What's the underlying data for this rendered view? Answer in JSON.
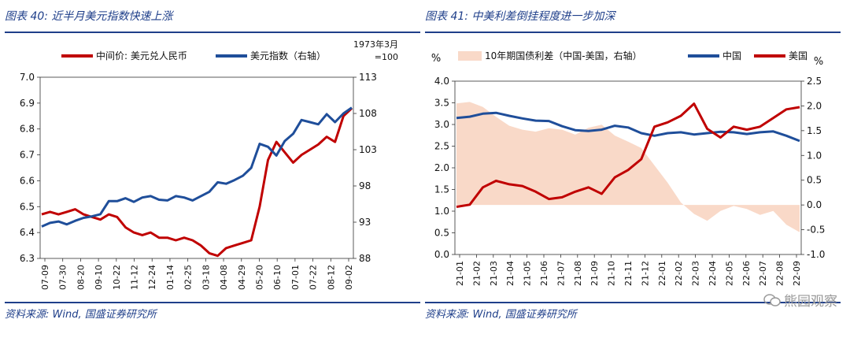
{
  "watermark": "熊园观察",
  "charts": [
    {
      "caption": "图表 40:  近半月美元指数快速上涨",
      "source": "资料来源:  Wind, 国盛证券研究所",
      "chart_data": {
        "type": "line",
        "legend": [
          "中间价: 美元兑人民币",
          "美元指数（右轴）"
        ],
        "right_axis_note": [
          "1973年3月",
          "=100"
        ],
        "x_ticks": [
          "07-09",
          "07-30",
          "08-20",
          "09-10",
          "10-22",
          "11-12",
          "12-24",
          "01-14",
          "02-25",
          "03-18",
          "04-08",
          "04-29",
          "05-20",
          "06-10",
          "07-01",
          "07-22",
          "08-12",
          "09-02"
        ],
        "ylim_left": [
          6.3,
          7.0
        ],
        "yticks_left": [
          "7.0",
          "6.9",
          "6.8",
          "6.7",
          "6.6",
          "6.5",
          "6.4",
          "6.3"
        ],
        "ylim_right": [
          88,
          113
        ],
        "yticks_right": [
          "113",
          "108",
          "103",
          "98",
          "93",
          "88"
        ],
        "series": [
          {
            "name": "中间价: 美元兑人民币",
            "axis": "left",
            "color": "#c00000",
            "values": [
              6.47,
              6.48,
              6.47,
              6.48,
              6.49,
              6.47,
              6.46,
              6.45,
              6.47,
              6.46,
              6.42,
              6.4,
              6.39,
              6.4,
              6.38,
              6.38,
              6.37,
              6.38,
              6.37,
              6.35,
              6.32,
              6.31,
              6.34,
              6.35,
              6.36,
              6.37,
              6.5,
              6.68,
              6.75,
              6.71,
              6.67,
              6.7,
              6.72,
              6.74,
              6.77,
              6.75,
              6.85,
              6.88
            ]
          },
          {
            "name": "美元指数（右轴）",
            "axis": "right",
            "color": "#1f4e9a",
            "values": [
              92.4,
              92.9,
              93.1,
              92.7,
              93.2,
              93.6,
              93.8,
              94.1,
              95.9,
              95.9,
              96.3,
              95.8,
              96.4,
              96.6,
              96.1,
              96.0,
              96.6,
              96.4,
              96.0,
              96.6,
              97.2,
              98.5,
              98.3,
              98.8,
              99.4,
              100.5,
              103.8,
              103.4,
              102.2,
              104.2,
              105.2,
              107.1,
              106.8,
              106.5,
              107.9,
              106.8,
              108.0,
              108.8
            ]
          }
        ]
      }
    },
    {
      "caption": "图表 41:  中美利差倒挂程度进一步加深",
      "source": "资料来源:  Wind, 国盛证券研究所",
      "chart_data": {
        "type": "line",
        "legend": [
          "10年期国债利差（中国-美国，右轴）",
          "中国",
          "美国"
        ],
        "left_unit": "%",
        "right_unit": "%",
        "x_ticks": [
          "21-01",
          "21-02",
          "21-03",
          "21-04",
          "21-05",
          "21-06",
          "21-07",
          "21-08",
          "21-09",
          "21-10",
          "21-11",
          "21-12",
          "22-01",
          "22-02",
          "22-03",
          "22-04",
          "22-05",
          "22-06",
          "22-07",
          "22-08",
          "22-09"
        ],
        "ylim_left": [
          0.0,
          4.0
        ],
        "yticks_left": [
          "4.0",
          "3.5",
          "3.0",
          "2.5",
          "2.0",
          "1.5",
          "1.0",
          "0.5",
          "0.0"
        ],
        "ylim_right": [
          -1.0,
          2.5
        ],
        "yticks_right": [
          "2.5",
          "2.0",
          "1.5",
          "1.0",
          "0.5",
          "0.0",
          "-0.5",
          "-1.0"
        ],
        "series": [
          {
            "name": "10年期国债利差（中国-美国，右轴）",
            "axis": "right",
            "kind": "area",
            "color": "#f9d9c8",
            "values": [
              2.05,
              2.08,
              1.98,
              1.78,
              1.6,
              1.52,
              1.48,
              1.55,
              1.52,
              1.42,
              1.56,
              1.62,
              1.4,
              1.28,
              1.15,
              0.8,
              0.45,
              0.05,
              -0.18,
              -0.32,
              -0.12,
              -0.02,
              -0.08,
              -0.2,
              -0.12,
              -0.4,
              -0.55
            ]
          },
          {
            "name": "中国",
            "axis": "left",
            "color": "#1f4e9a",
            "values": [
              3.15,
              3.18,
              3.25,
              3.27,
              3.2,
              3.14,
              3.09,
              3.08,
              2.96,
              2.87,
              2.85,
              2.88,
              2.97,
              2.93,
              2.8,
              2.74,
              2.8,
              2.82,
              2.77,
              2.8,
              2.83,
              2.82,
              2.78,
              2.82,
              2.84,
              2.74,
              2.62
            ]
          },
          {
            "name": "美国",
            "axis": "left",
            "color": "#c00000",
            "values": [
              1.1,
              1.15,
              1.55,
              1.7,
              1.62,
              1.58,
              1.45,
              1.28,
              1.32,
              1.45,
              1.55,
              1.4,
              1.78,
              1.95,
              2.2,
              2.95,
              3.05,
              3.2,
              3.48,
              2.9,
              2.7,
              2.95,
              2.88,
              2.95,
              3.15,
              3.35,
              3.4
            ]
          }
        ]
      }
    }
  ]
}
